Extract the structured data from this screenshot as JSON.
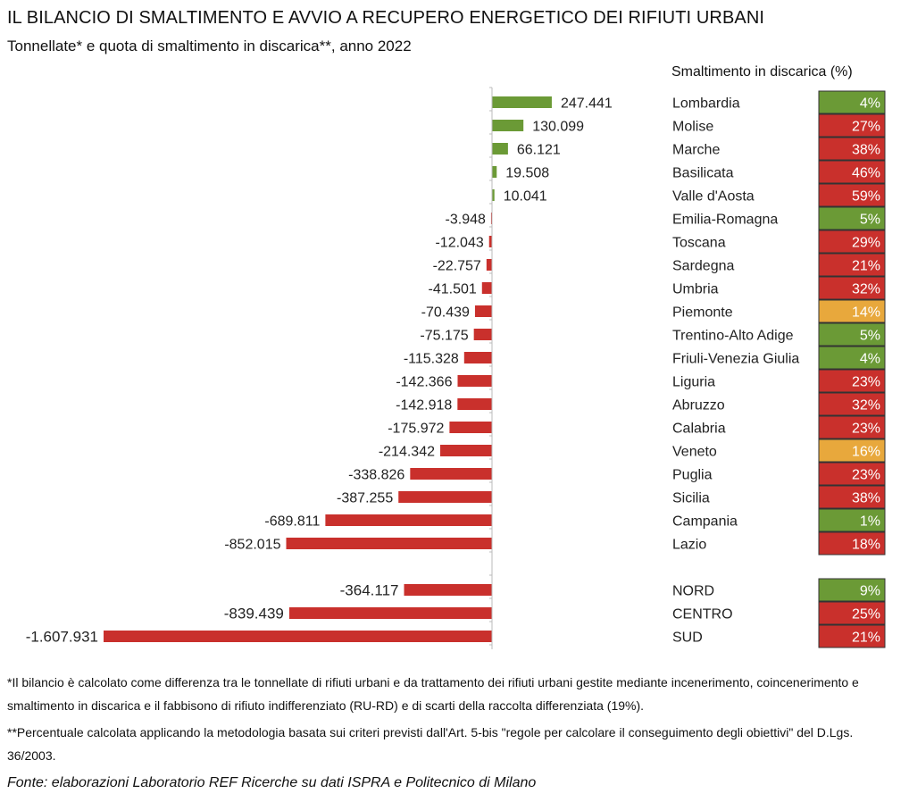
{
  "title": "IL BILANCIO DI SMALTIMENTO E AVVIO A RECUPERO ENERGETICO DEI RIFIUTI URBANI",
  "subtitle": "Tonnellate* e quota di smaltimento in discarica**, anno 2022",
  "pct_header": "Smaltimento in discarica (%)",
  "notes": [
    "*Il bilancio è calcolato come differenza tra le tonnellate di rifiuti urbani e da trattamento dei rifiuti urbani gestite mediante incenerimento, coincenerimento e smaltimento in discarica e il fabbisono di rifiuto indifferenziato (RU-RD) e di scarti della raccolta differenziata (19%).",
    "**Percentuale calcolata applicando la metodologia basata sui criteri previsti dall'Art. 5-bis \"regole per calcolare il conseguimento degli obiettivi\" del D.Lgs. 36/2003."
  ],
  "source": "Fonte: elaborazioni Laboratorio REF Ricerche su dati ISPRA e Politecnico di Milano",
  "colors": {
    "positive_bar": "#6b9a36",
    "negative_bar": "#c9302c",
    "pct_green": "#6b9a36",
    "pct_red": "#c9302c",
    "pct_orange": "#e8a83c",
    "axis": "#bbbbbb"
  },
  "chart_data": {
    "type": "bar",
    "orientation": "horizontal",
    "categories": [
      "Lombardia",
      "Molise",
      "Marche",
      "Basilicata",
      "Valle d'Aosta",
      "Emilia-Romagna",
      "Toscana",
      "Sardegna",
      "Umbria",
      "Piemonte",
      "Trentino-Alto Adige",
      "Friuli-Venezia Giulia",
      "Liguria",
      "Abruzzo",
      "Calabria",
      "Veneto",
      "Puglia",
      "Sicilia",
      "Campania",
      "Lazio",
      "NORD",
      "CENTRO",
      "SUD"
    ],
    "values": [
      247441,
      130099,
      66121,
      19508,
      10041,
      -3948,
      -12043,
      -22757,
      -41501,
      -70439,
      -75175,
      -115328,
      -142366,
      -142918,
      -175972,
      -214342,
      -338826,
      -387255,
      -689811,
      -852015,
      -364117,
      -839439,
      -1607931
    ],
    "value_labels": [
      "247.441",
      "130.099",
      "66.121",
      "19.508",
      "10.041",
      "-3.948",
      "-12.043",
      "-22.757",
      "-41.501",
      "-70.439",
      "-75.175",
      "-115.328",
      "-142.366",
      "-142.918",
      "-175.972",
      "-214.342",
      "-338.826",
      "-387.255",
      "-689.811",
      "-852.015",
      "-364.117",
      "-839.439",
      "-1.607.931"
    ],
    "groups": [
      "regione",
      "regione",
      "regione",
      "regione",
      "regione",
      "regione",
      "regione",
      "regione",
      "regione",
      "regione",
      "regione",
      "regione",
      "regione",
      "regione",
      "regione",
      "regione",
      "regione",
      "regione",
      "regione",
      "regione",
      "macroarea",
      "macroarea",
      "macroarea"
    ],
    "landfill_share_pct": [
      4,
      27,
      38,
      46,
      59,
      5,
      29,
      21,
      32,
      14,
      5,
      4,
      23,
      32,
      23,
      16,
      23,
      38,
      1,
      18,
      9,
      25,
      21
    ],
    "landfill_share_labels": [
      "4%",
      "27%",
      "38%",
      "46%",
      "59%",
      "5%",
      "29%",
      "21%",
      "32%",
      "14%",
      "5%",
      "4%",
      "23%",
      "32%",
      "23%",
      "16%",
      "23%",
      "38%",
      "1%",
      "18%",
      "9%",
      "25%",
      "21%"
    ],
    "landfill_share_color": [
      "green",
      "red",
      "red",
      "red",
      "red",
      "green",
      "red",
      "red",
      "red",
      "orange",
      "green",
      "green",
      "red",
      "red",
      "red",
      "orange",
      "red",
      "red",
      "green",
      "red",
      "green",
      "red",
      "red"
    ],
    "xlim": [
      -1607931,
      247441
    ],
    "grid": false,
    "legend": "none"
  }
}
